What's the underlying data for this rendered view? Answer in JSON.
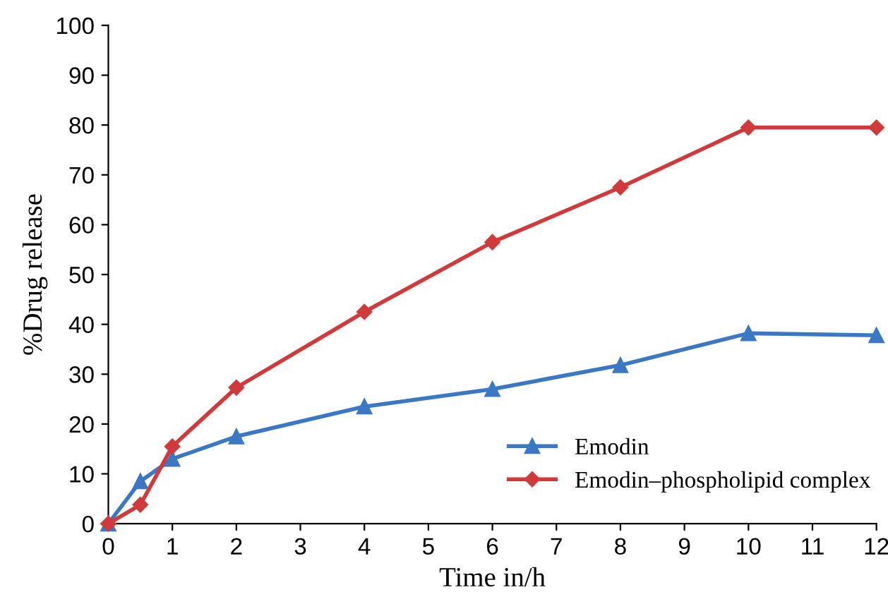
{
  "chart_data": {
    "type": "line",
    "xlabel": "Time in/h",
    "ylabel": "%Drug release",
    "x": [
      0,
      0.5,
      1,
      2,
      4,
      6,
      8,
      10,
      12
    ],
    "series": [
      {
        "name": "Emodin",
        "color": "#3a78c4",
        "marker": "triangle",
        "values": [
          0,
          8.5,
          13,
          17.5,
          23.5,
          27,
          31.8,
          38.2,
          37.8
        ]
      },
      {
        "name": "Emodin–phospholipid complex",
        "color": "#d03a3a",
        "marker": "diamond",
        "values": [
          0,
          3.8,
          15.5,
          27.3,
          42.5,
          56.5,
          67.5,
          79.5,
          79.5
        ]
      }
    ],
    "xlim": [
      0,
      12
    ],
    "ylim": [
      0,
      100
    ],
    "xticks": [
      0,
      1,
      2,
      3,
      4,
      5,
      6,
      7,
      8,
      9,
      10,
      11,
      12
    ],
    "yticks": [
      0,
      10,
      20,
      30,
      40,
      50,
      60,
      70,
      80,
      90,
      100
    ],
    "grid": false,
    "legend": "bottom right",
    "line_style": "solid"
  }
}
